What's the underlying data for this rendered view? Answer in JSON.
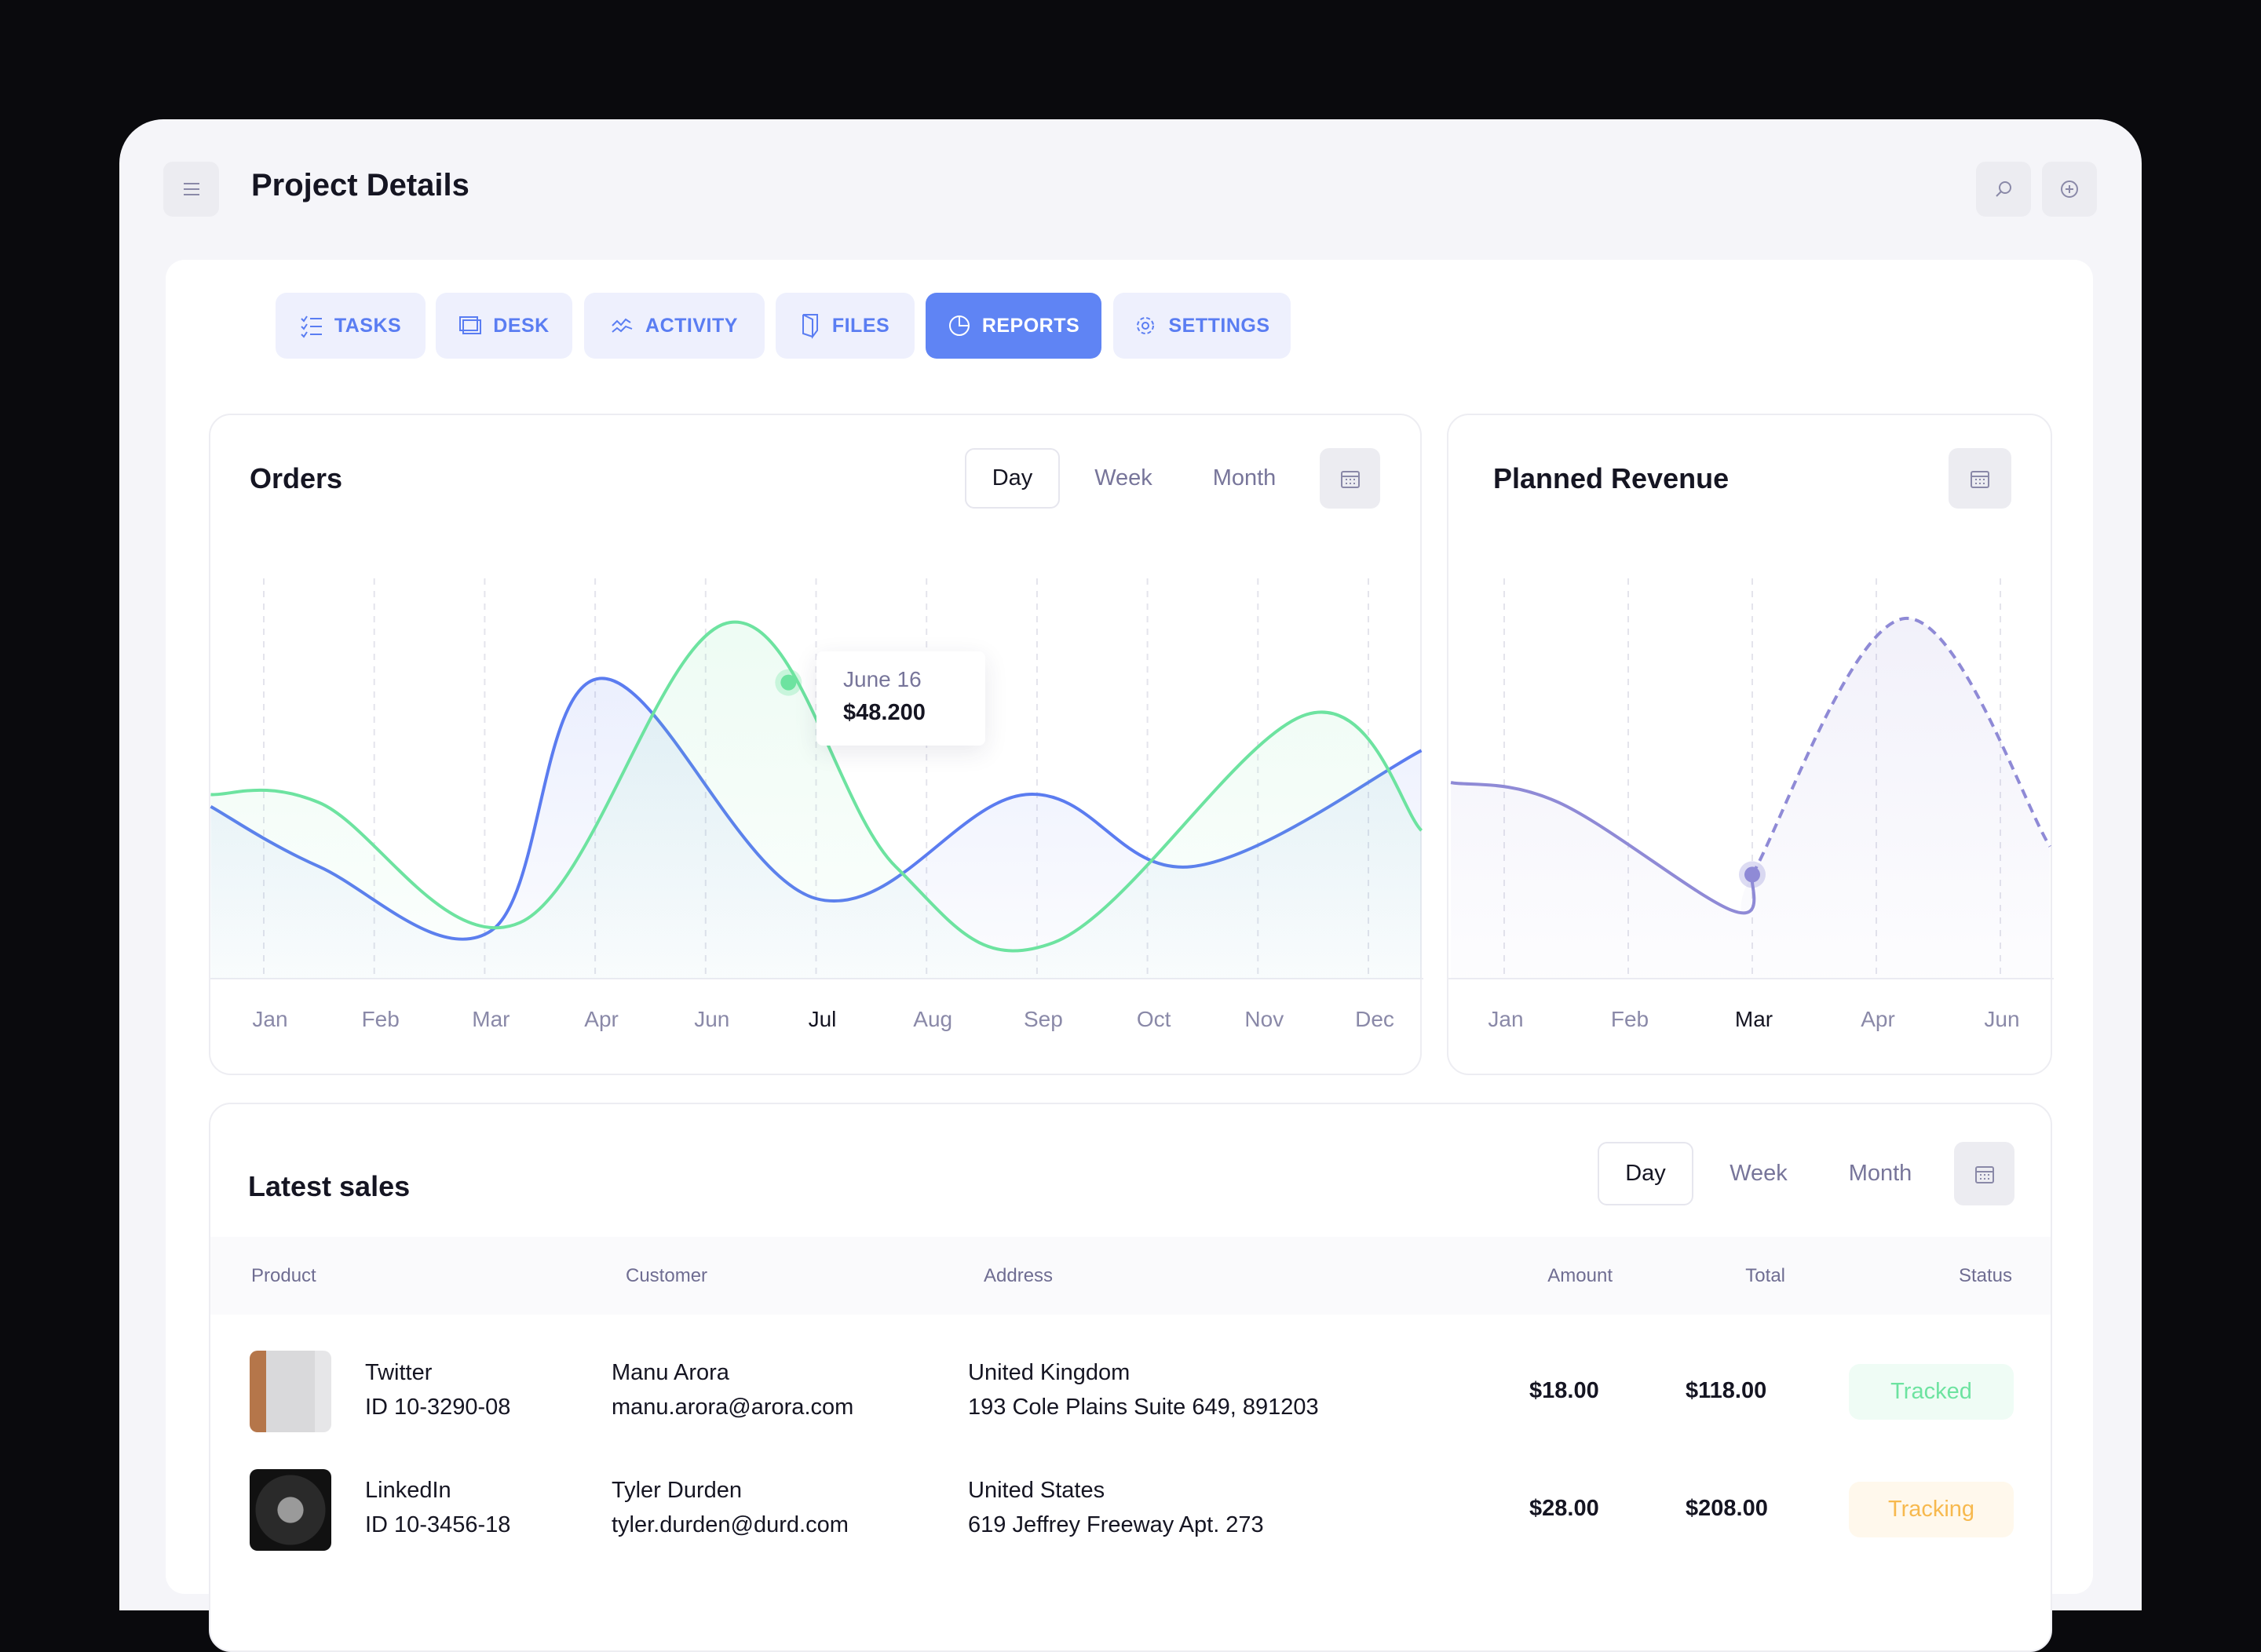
{
  "header": {
    "title": "Project Details",
    "menu_icon": "menu-icon",
    "search_icon": "search-icon",
    "add_icon": "plus-circle-icon"
  },
  "tabs": [
    {
      "label": "TASKS",
      "icon": "checklist-icon"
    },
    {
      "label": "DESK",
      "icon": "desk-icon"
    },
    {
      "label": "ACTIVITY",
      "icon": "activity-icon"
    },
    {
      "label": "FILES",
      "icon": "file-icon"
    },
    {
      "label": "REPORTS",
      "icon": "pie-chart-icon",
      "active": true
    },
    {
      "label": "SETTINGS",
      "icon": "gear-icon"
    }
  ],
  "colors": {
    "accent": "#5f84f4",
    "blue_series": "#5b7cf0",
    "green_series": "#6de3a0",
    "revenue": "#8f8ad6",
    "tracked": "#6de3a0",
    "tracking": "#f7b94e"
  },
  "orders": {
    "title": "Orders",
    "periods": [
      "Day",
      "Week",
      "Month"
    ],
    "active_period": "Day",
    "tooltip": {
      "date": "June 16",
      "value": "$48.200"
    }
  },
  "revenue": {
    "title": "Planned Revenue"
  },
  "chart_data": [
    {
      "type": "line",
      "title": "Orders",
      "categories": [
        "Jan",
        "Feb",
        "Mar",
        "Apr",
        "Jun",
        "Jul",
        "Aug",
        "Sep",
        "Oct",
        "Nov",
        "Dec"
      ],
      "highlight_label": "Jul",
      "grid": "vertical dashed",
      "ylim": [
        0,
        100
      ],
      "series": [
        {
          "color": "#5b7cf0",
          "points": [
            [
              -0.48,
              43
            ],
            [
              0.5,
              28
            ],
            [
              2.06,
              12
            ],
            [
              3.04,
              75
            ],
            [
              5.0,
              20
            ],
            [
              6.9,
              46
            ],
            [
              8.4,
              28
            ],
            [
              10.48,
              57
            ]
          ]
        },
        {
          "color": "#6de3a0",
          "points": [
            [
              -0.48,
              46
            ],
            [
              0.5,
              44
            ],
            [
              2.32,
              14
            ],
            [
              4.22,
              89
            ],
            [
              5.72,
              28
            ],
            [
              7.15,
              9
            ],
            [
              9.44,
              66
            ],
            [
              10.48,
              37
            ]
          ]
        }
      ],
      "marker": {
        "series": 1,
        "x": 4.75,
        "y": 74
      }
    },
    {
      "type": "line",
      "title": "Planned Revenue",
      "categories": [
        "Jan",
        "Feb",
        "Mar",
        "Apr",
        "Jun"
      ],
      "highlight_label": "Mar",
      "grid": "vertical dashed",
      "ylim": [
        0,
        100
      ],
      "series": [
        {
          "color": "#8f8ad6",
          "points": [
            [
              -0.43,
              49
            ],
            [
              0.44,
              44
            ],
            [
              1.84,
              17
            ],
            [
              2.0,
              26
            ],
            [
              3.23,
              90
            ],
            [
              4.4,
              33
            ]
          ],
          "dashed_after": 2.0
        }
      ],
      "marker": {
        "series": 0,
        "x": 2.0,
        "y": 26
      }
    }
  ],
  "sales": {
    "title": "Latest sales",
    "periods": [
      "Day",
      "Week",
      "Month"
    ],
    "active_period": "Day",
    "columns": [
      "Product",
      "Customer",
      "Address",
      "Amount",
      "Total",
      "Status"
    ],
    "rows": [
      {
        "product": "Twitter",
        "id": "ID 10-3290-08",
        "customer": "Manu Arora",
        "email": "manu.arora@arora.com",
        "country": "United Kingdom",
        "address": "193 Cole Plains Suite 649, 891203",
        "amount": "$18.00",
        "total": "$118.00",
        "status": "Tracked"
      },
      {
        "product": "LinkedIn",
        "id": "ID 10-3456-18",
        "customer": "Tyler Durden",
        "email": "tyler.durden@durd.com",
        "country": "United States",
        "address": "619 Jeffrey Freeway Apt. 273",
        "amount": "$28.00",
        "total": "$208.00",
        "status": "Tracking"
      }
    ]
  }
}
